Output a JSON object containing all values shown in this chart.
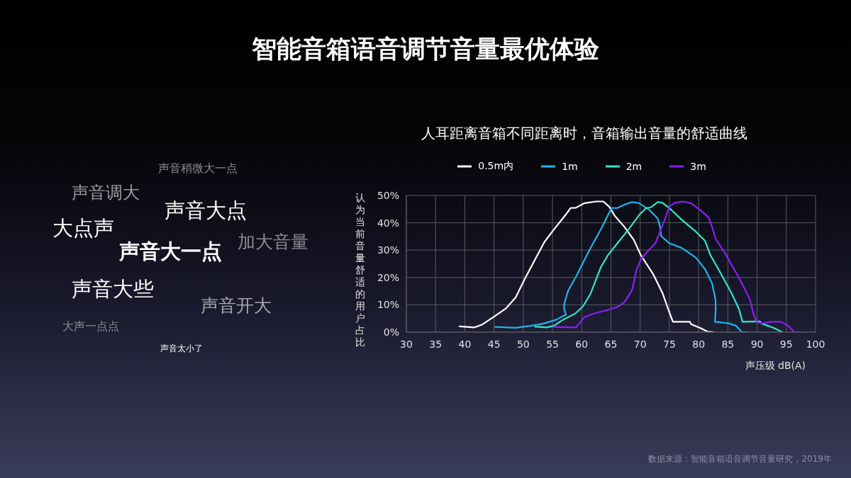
{
  "chart_data": {
    "type": "line",
    "title": "智能音箱语音调节音量最优体验",
    "subtitle": "人耳距离音箱不同距离时，音箱输出音量的舒适曲线",
    "xlabel": "声压级 dB(A)",
    "ylabel": "认为当前音量舒适的用户占比",
    "annotations": [
      "声音稍微大一点",
      "声音调大",
      "声音大点",
      "大点声",
      "加大音量",
      "声音大一点",
      "声音大些",
      "声音开大",
      "大声一点点",
      "声音太小了",
      "数据来源：智能音箱语音调节音量研究，2019年"
    ],
    "xlim": [
      30,
      100
    ],
    "xticks": [
      30,
      35,
      40,
      45,
      50,
      55,
      60,
      65,
      70,
      75,
      80,
      85,
      90,
      95,
      100
    ],
    "ylim": [
      0,
      50
    ],
    "yticks": [
      {
        "value": 0,
        "label": "0%"
      },
      {
        "value": 10,
        "label": "10%"
      },
      {
        "value": 20,
        "label": "20%"
      },
      {
        "value": 30,
        "label": "30%"
      },
      {
        "value": 40,
        "label": "40%"
      },
      {
        "value": 50,
        "label": "50%"
      }
    ],
    "grid": true,
    "legend": "top",
    "line_style": "solid",
    "series": [
      {
        "name": "0.5m内",
        "color": "#ffffff",
        "x": [
          39.1,
          41.6,
          43.0,
          45.1,
          47.1,
          48.7,
          50.3,
          52.0,
          53.6,
          55.4,
          57.2,
          58.1,
          59.0,
          60.5,
          62.5,
          63.7,
          64.7,
          65.7,
          67.3,
          68.9,
          70.1,
          72.2,
          73.8,
          74.8,
          75.6,
          78.5,
          78.7,
          80.3,
          81.5,
          82.5
        ],
        "values": [
          2.1,
          1.7,
          2.8,
          5.8,
          8.8,
          12.7,
          19.6,
          26.5,
          32.9,
          38.0,
          42.8,
          45.4,
          45.5,
          47.2,
          47.8,
          47.8,
          45.9,
          42.4,
          38.5,
          33.8,
          28.2,
          21.3,
          14.4,
          8.4,
          3.8,
          3.8,
          2.9,
          1.5,
          0.2,
          0
        ]
      },
      {
        "name": "1m",
        "color": "#1cb4f0",
        "x": [
          45.2,
          48.7,
          51.2,
          53.6,
          55.6,
          57.3,
          57.0,
          57.0,
          57.2,
          57.7,
          59.2,
          61.3,
          63.3,
          65.1,
          66.1,
          67.4,
          68.6,
          69.8,
          71.4,
          73.0,
          73.4,
          73.6,
          75.0,
          77.1,
          79.5,
          81.1,
          82.3,
          82.9,
          82.9,
          82.8,
          85.2,
          86.4,
          87.4,
          88.4
        ],
        "values": [
          1.9,
          1.6,
          2.3,
          3.2,
          4.5,
          6.4,
          8.4,
          10.1,
          11.8,
          15.3,
          21.0,
          30.0,
          37.7,
          45.4,
          45.4,
          46.7,
          47.6,
          47.2,
          45.0,
          41.6,
          38.5,
          35.1,
          32.5,
          30.8,
          27.3,
          23.0,
          17.8,
          11.8,
          7.5,
          3.8,
          3.2,
          2.3,
          0,
          0
        ]
      },
      {
        "name": "2m",
        "color": "#2ee8c8",
        "x": [
          52.0,
          54.0,
          55.2,
          56.8,
          58.9,
          60.2,
          61.5,
          63.3,
          64.5,
          66.1,
          68.2,
          69.8,
          71.0,
          71.8,
          73.0,
          73.8,
          75.0,
          77.1,
          79.5,
          81.1,
          82.0,
          83.6,
          85.6,
          86.9,
          87.5,
          90.5,
          90.7,
          92.9,
          94.3
        ],
        "values": [
          2.0,
          1.7,
          2.3,
          4.5,
          6.8,
          9.4,
          14.0,
          23.9,
          28.2,
          32.5,
          38.1,
          42.8,
          45.4,
          45.6,
          47.6,
          47.3,
          45.4,
          41.1,
          36.8,
          33.4,
          28.2,
          22.2,
          14.4,
          8.4,
          3.8,
          3.9,
          3.2,
          1.5,
          0
        ]
      },
      {
        "name": "3m",
        "color": "#8a1ef5",
        "x": [
          55.2,
          59.0,
          59.6,
          60.5,
          62.1,
          64.1,
          66.1,
          67.3,
          68.6,
          69.4,
          70.2,
          71.4,
          72.6,
          73.4,
          74.2,
          75.0,
          75.9,
          77.3,
          78.7,
          80.3,
          81.7,
          82.3,
          82.9,
          84.7,
          87.2,
          88.8,
          89.4,
          90.0,
          90.9,
          92.5,
          94.1,
          95.3,
          96.4,
          97.4
        ],
        "values": [
          1.9,
          1.7,
          3.2,
          5.5,
          6.8,
          7.9,
          9.2,
          10.9,
          15.3,
          23.0,
          26.9,
          29.9,
          32.5,
          36.8,
          41.1,
          45.9,
          47.3,
          47.8,
          47.2,
          44.6,
          42.0,
          38.5,
          34.2,
          28.2,
          18.7,
          11.8,
          6.6,
          3.6,
          3.2,
          3.8,
          3.8,
          2.3,
          0,
          0
        ]
      }
    ]
  }
}
